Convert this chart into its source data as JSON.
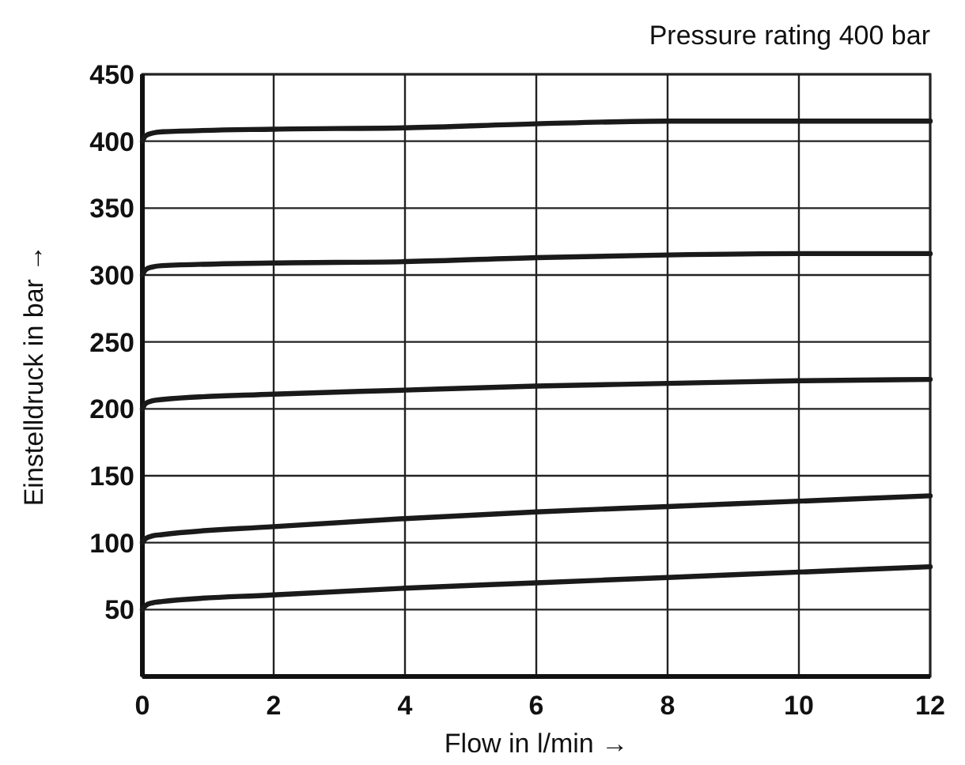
{
  "chart_data": {
    "type": "line",
    "title": "Pressure rating 400 bar",
    "xlabel": "Flow in l/min →",
    "ylabel": "Einstelldruck in bar →",
    "x": [
      0,
      0.05,
      0.15,
      0.3,
      2,
      4,
      6,
      8,
      10,
      12
    ],
    "series": [
      {
        "color": "#1a1a1a",
        "values": [
          50,
          53,
          55,
          56,
          61,
          66,
          70,
          74,
          78,
          82
        ]
      },
      {
        "color": "#1a1a1a",
        "values": [
          100,
          103,
          105,
          106,
          112,
          118,
          123,
          127,
          131,
          135
        ]
      },
      {
        "color": "#1a1a1a",
        "values": [
          200,
          204,
          206,
          207,
          211,
          214,
          217,
          219,
          221,
          222
        ]
      },
      {
        "color": "#1a1a1a",
        "values": [
          300,
          304,
          306,
          307,
          309,
          310,
          313,
          315,
          316,
          316
        ]
      },
      {
        "color": "#1a1a1a",
        "values": [
          400,
          404,
          406,
          407,
          409,
          410,
          413,
          415,
          415,
          415
        ]
      }
    ],
    "xlim": [
      0,
      12
    ],
    "xticks": [
      0,
      2,
      4,
      6,
      8,
      10,
      12
    ],
    "ylim": [
      0,
      450
    ],
    "yticks": [
      50,
      100,
      150,
      200,
      250,
      300,
      350,
      400,
      450
    ],
    "grid": true,
    "marker": "none",
    "line_style": "solid"
  }
}
